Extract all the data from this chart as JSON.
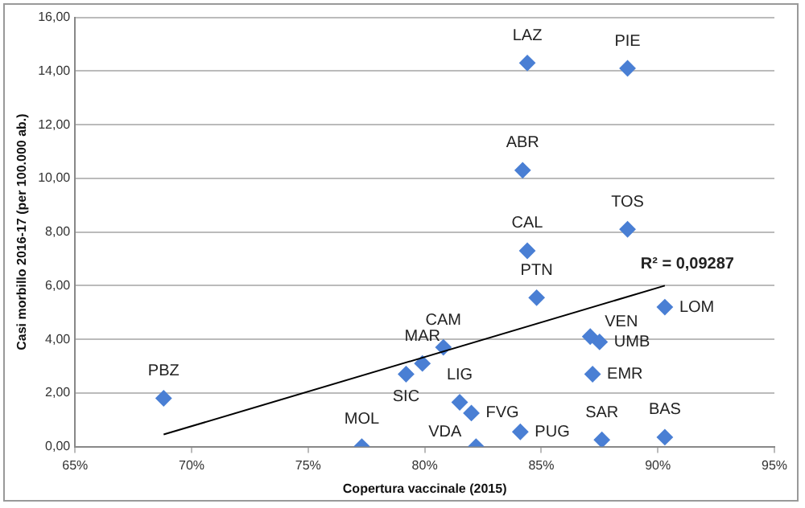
{
  "chart_data": {
    "type": "scatter",
    "xlabel": "Copertura vaccinale (2015)",
    "ylabel": "Casi morbillo 2016-17 (per 100.000 ab.)",
    "xlim": [
      65,
      95
    ],
    "xticks": [
      {
        "value": 65,
        "label": "65%"
      },
      {
        "value": 70,
        "label": "70%"
      },
      {
        "value": 75,
        "label": "75%"
      },
      {
        "value": 80,
        "label": "80%"
      },
      {
        "value": 85,
        "label": "85%"
      },
      {
        "value": 90,
        "label": "90%"
      },
      {
        "value": 95,
        "label": "95%"
      }
    ],
    "ylim": [
      0,
      16
    ],
    "yticks": [
      {
        "value": 0,
        "label": "0,00"
      },
      {
        "value": 2,
        "label": "2,00"
      },
      {
        "value": 4,
        "label": "4,00"
      },
      {
        "value": 6,
        "label": "6,00"
      },
      {
        "value": 8,
        "label": "8,00"
      },
      {
        "value": 10,
        "label": "10,00"
      },
      {
        "value": 12,
        "label": "12,00"
      },
      {
        "value": 14,
        "label": "14,00"
      },
      {
        "value": 16,
        "label": "16,00"
      }
    ],
    "grid": "y",
    "legend": false,
    "marker": "diamond",
    "series": [
      {
        "color": "#4a7fd4",
        "x": [
          84.4,
          88.7,
          84.2,
          88.7,
          84.4,
          84.8,
          90.3,
          87.1,
          87.5,
          87.2,
          80.8,
          79.9,
          79.2,
          68.8,
          81.5,
          82.0,
          84.1,
          87.6,
          90.3,
          82.2,
          77.3
        ],
        "values": [
          14.3,
          14.1,
          10.3,
          8.1,
          7.3,
          5.55,
          5.2,
          4.1,
          3.9,
          2.7,
          3.7,
          3.1,
          2.7,
          1.8,
          1.65,
          1.25,
          0.55,
          0.25,
          0.35,
          0.0,
          0.0
        ]
      },
      {
        "type": "line",
        "color": "#000000",
        "marker": "none",
        "x": [
          68.8,
          90.3
        ],
        "values": [
          0.45,
          6.0
        ]
      }
    ],
    "annotations": [
      {
        "text": "LAZ",
        "x": 84.4,
        "y": 14.3
      },
      {
        "text": "PIE",
        "x": 88.7,
        "y": 14.1
      },
      {
        "text": "ABR",
        "x": 84.2,
        "y": 10.3
      },
      {
        "text": "TOS",
        "x": 88.7,
        "y": 8.1
      },
      {
        "text": "CAL",
        "x": 84.4,
        "y": 7.3
      },
      {
        "text": "PTN",
        "x": 84.8,
        "y": 5.55
      },
      {
        "text": "LOM",
        "x": 90.3,
        "y": 5.2
      },
      {
        "text": "VEN",
        "x": 87.1,
        "y": 4.1
      },
      {
        "text": "UMB",
        "x": 87.5,
        "y": 3.9
      },
      {
        "text": "EMR",
        "x": 87.2,
        "y": 2.7
      },
      {
        "text": "CAM",
        "x": 80.8,
        "y": 3.7
      },
      {
        "text": "MAR",
        "x": 79.9,
        "y": 3.1
      },
      {
        "text": "SIC",
        "x": 79.2,
        "y": 2.7
      },
      {
        "text": "PBZ",
        "x": 68.8,
        "y": 1.8
      },
      {
        "text": "LIG",
        "x": 81.5,
        "y": 1.65
      },
      {
        "text": "FVG",
        "x": 82.0,
        "y": 1.25
      },
      {
        "text": "PUG",
        "x": 84.1,
        "y": 0.55
      },
      {
        "text": "SAR",
        "x": 87.6,
        "y": 0.25
      },
      {
        "text": "BAS",
        "x": 90.3,
        "y": 0.35
      },
      {
        "text": "VDA",
        "x": 82.2,
        "y": 0.0
      },
      {
        "text": "MOL",
        "x": 77.3,
        "y": 0.0
      },
      "R² = 0,09287"
    ]
  }
}
